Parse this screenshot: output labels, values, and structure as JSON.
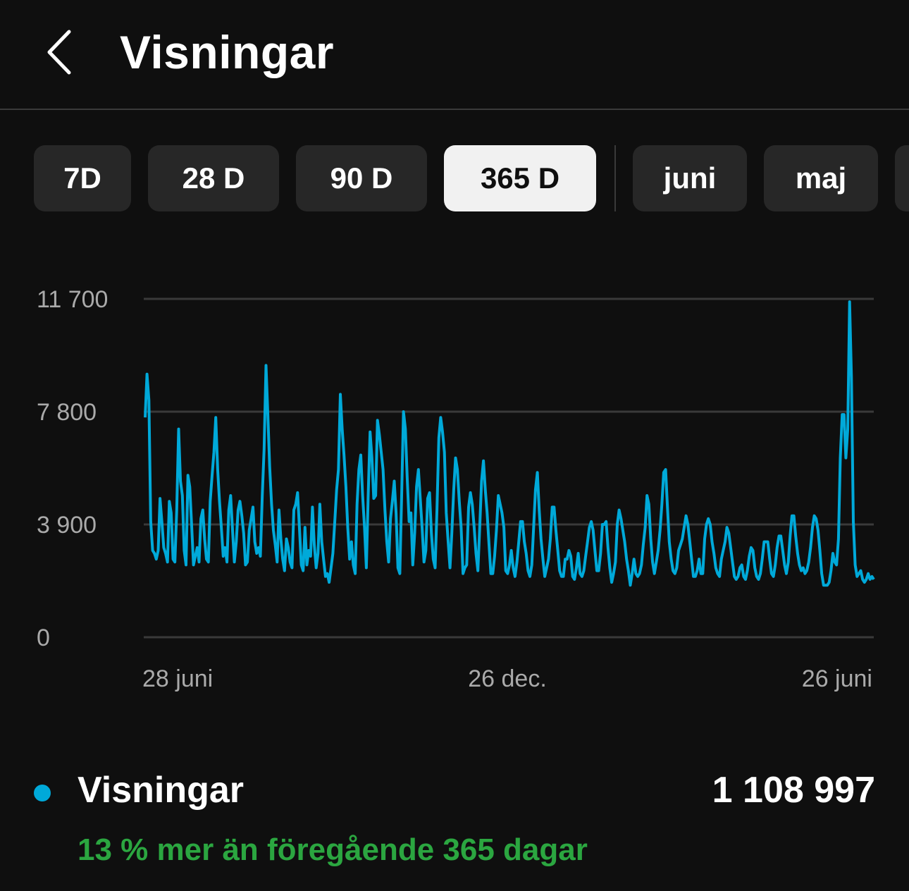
{
  "header": {
    "title": "Visningar",
    "back_icon": "chevron-left-icon"
  },
  "chips": [
    {
      "label": "7D",
      "active": false
    },
    {
      "label": "28 D",
      "active": false
    },
    {
      "label": "90 D",
      "active": false
    },
    {
      "label": "365 D",
      "active": true
    },
    {
      "label": "juni",
      "active": false
    },
    {
      "label": "maj",
      "active": false
    }
  ],
  "chart_data": {
    "type": "line",
    "y_ticks": [
      {
        "value": 0,
        "label": "0"
      },
      {
        "value": 3900,
        "label": "3 900"
      },
      {
        "value": 7800,
        "label": "7 800"
      },
      {
        "value": 11700,
        "label": "11 700"
      }
    ],
    "ylim": [
      0,
      11700
    ],
    "x_tick_labels": [
      "28 juni",
      "26 dec.",
      "26 juni"
    ],
    "grid": true,
    "series_color": "#00a9d9",
    "series": [
      {
        "name": "Visningar",
        "x_start": "28 juni",
        "x_end": "26 juni",
        "values": [
          7600,
          9100,
          8200,
          4000,
          3000,
          2900,
          2700,
          3000,
          4800,
          4000,
          3100,
          2900,
          2600,
          4700,
          4300,
          2700,
          2600,
          4400,
          7200,
          5400,
          4900,
          3000,
          2500,
          5600,
          5200,
          3900,
          2500,
          2800,
          3100,
          2600,
          4100,
          4400,
          3400,
          2700,
          2600,
          4700,
          5600,
          6400,
          7600,
          5800,
          4700,
          3800,
          2800,
          3100,
          2600,
          4400,
          4900,
          3700,
          2600,
          3300,
          4400,
          4700,
          4200,
          3600,
          2500,
          2600,
          3700,
          4100,
          4500,
          3300,
          2900,
          3100,
          2800,
          4900,
          6500,
          9400,
          7700,
          5900,
          4600,
          3700,
          3200,
          2600,
          4400,
          3400,
          2700,
          2300,
          3400,
          3100,
          2600,
          2400,
          4400,
          4600,
          5000,
          3800,
          2500,
          2300,
          3800,
          2500,
          3000,
          2800,
          4500,
          3200,
          2400,
          2900,
          4600,
          3300,
          2700,
          2100,
          2200,
          1900,
          2400,
          2900,
          4000,
          5100,
          5800,
          8400,
          7200,
          6300,
          5200,
          3800,
          2700,
          3300,
          2500,
          2200,
          4600,
          5800,
          6300,
          4900,
          3800,
          2400,
          4900,
          7100,
          6200,
          4800,
          4900,
          7500,
          7000,
          6400,
          5800,
          4400,
          3300,
          2600,
          4100,
          4700,
          5400,
          4300,
          2400,
          2200,
          4900,
          7800,
          7200,
          5500,
          4000,
          4300,
          2500,
          3600,
          5200,
          5800,
          4800,
          3800,
          2600,
          3000,
          4800,
          5000,
          3600,
          2700,
          2400,
          4400,
          6900,
          7600,
          7100,
          6400,
          4300,
          3300,
          2400,
          3600,
          5100,
          6200,
          5800,
          4700,
          3800,
          2200,
          2400,
          2500,
          4500,
          5000,
          4600,
          3800,
          2900,
          2300,
          3800,
          5400,
          6100,
          5100,
          4300,
          3200,
          2200,
          2200,
          2800,
          3700,
          4900,
          4600,
          4300,
          3800,
          2300,
          2200,
          2500,
          3000,
          2400,
          2100,
          2600,
          3300,
          4000,
          4000,
          3300,
          2900,
          2300,
          2100,
          2500,
          3800,
          5100,
          5700,
          4400,
          3400,
          2700,
          2100,
          2400,
          2700,
          3400,
          4500,
          4500,
          3700,
          3000,
          2300,
          2100,
          2100,
          2700,
          2700,
          3000,
          2800,
          2100,
          2000,
          2400,
          2900,
          2200,
          2100,
          2300,
          2800,
          3300,
          3800,
          4000,
          3700,
          3000,
          2300,
          2300,
          2900,
          3900,
          3900,
          4000,
          3100,
          2400,
          1900,
          2200,
          2600,
          3900,
          4400,
          4100,
          3700,
          3300,
          2700,
          2300,
          1800,
          2200,
          2700,
          2200,
          2100,
          2200,
          2500,
          3200,
          3800,
          4900,
          4600,
          3400,
          2600,
          2200,
          2600,
          3000,
          3700,
          4600,
          5700,
          5800,
          4500,
          3300,
          2700,
          2300,
          2200,
          2400,
          3000,
          3200,
          3400,
          3800,
          4200,
          3900,
          3300,
          2700,
          2100,
          2100,
          2300,
          2700,
          2200,
          2200,
          3400,
          3900,
          4100,
          3900,
          3300,
          2900,
          2400,
          2200,
          2100,
          2700,
          3000,
          3300,
          3800,
          3600,
          3100,
          2600,
          2100,
          2000,
          2100,
          2400,
          2500,
          2100,
          2000,
          2300,
          2800,
          3100,
          3000,
          2400,
          2100,
          2000,
          2200,
          2700,
          3300,
          3300,
          3300,
          2700,
          2200,
          2100,
          2500,
          3100,
          3500,
          3500,
          3000,
          2500,
          2200,
          2600,
          3500,
          4200,
          4200,
          3500,
          2900,
          2500,
          2300,
          2400,
          2200,
          2300,
          2600,
          3100,
          3800,
          4200,
          4100,
          3700,
          3000,
          2200,
          1800,
          1800,
          1800,
          1900,
          2300,
          2900,
          2600,
          2500,
          3400,
          6200,
          7700,
          7700,
          6200,
          7200,
          11600,
          9000,
          4000,
          2500,
          2100,
          2200,
          2300,
          2000,
          1900,
          2000,
          2200,
          2000,
          2100,
          2000
        ]
      }
    ]
  },
  "legend": {
    "dot_color": "#00a9d9",
    "label": "Visningar",
    "value": "1 108 997"
  },
  "comparison": {
    "text": "13 % mer än föregående 365 dagar",
    "color": "#2ba640"
  }
}
